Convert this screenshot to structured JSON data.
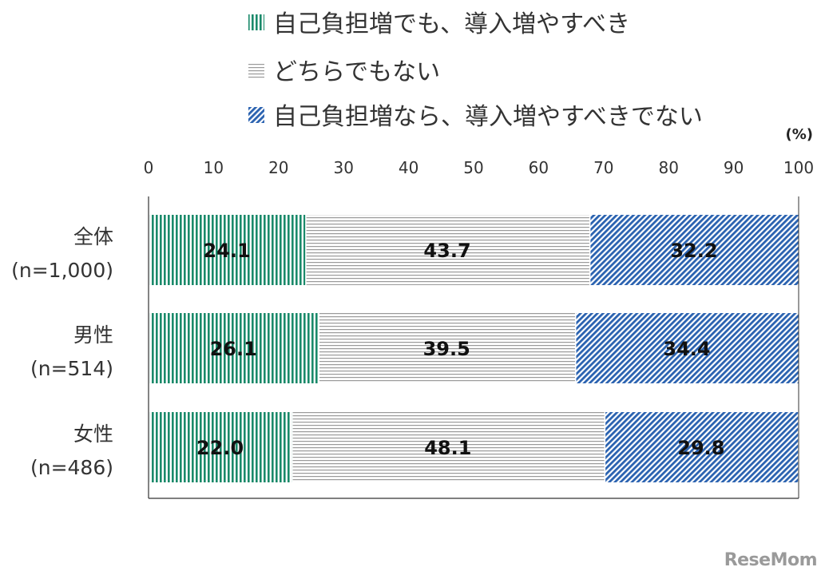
{
  "chart_data": {
    "type": "bar",
    "orientation": "horizontal",
    "stacked": true,
    "unit": "(%)",
    "xlim": [
      0,
      100
    ],
    "xticks": [
      "0",
      "10",
      "20",
      "30",
      "40",
      "50",
      "60",
      "70",
      "80",
      "90",
      "100"
    ],
    "categories": [
      [
        "全体",
        "(n=1,000)"
      ],
      [
        "男性",
        "(n=514)"
      ],
      [
        "女性",
        "(n=486)"
      ]
    ],
    "series": [
      {
        "name": "自己負担増でも、導入増やすべき",
        "color": "#1a8a6a",
        "pattern": "vertical-stripes",
        "values": [
          24.1,
          26.1,
          22.0
        ]
      },
      {
        "name": "どちらでもない",
        "color": "#9a9a9a",
        "pattern": "horizontal-lines",
        "values": [
          43.7,
          39.5,
          48.1
        ]
      },
      {
        "name": "自己負担増なら、導入増やすべきでない",
        "color": "#2a62b0",
        "pattern": "diagonal-stripes",
        "values": [
          32.2,
          34.4,
          29.8
        ]
      }
    ],
    "legend_position": "top",
    "grid": false
  },
  "watermark": "ReseMom"
}
